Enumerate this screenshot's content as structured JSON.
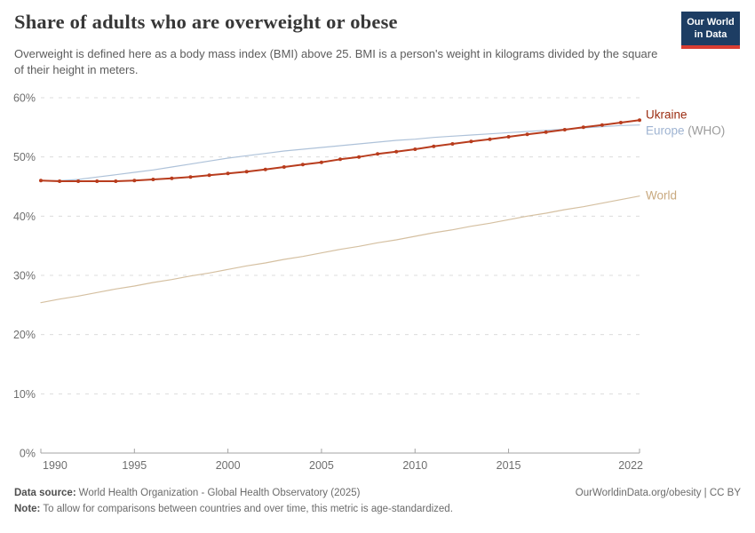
{
  "header": {
    "title": "Share of adults who are overweight or obese",
    "subtitle": "Overweight is defined here as a body mass index (BMI) above 25. BMI is a person's weight in kilograms divided by the square of their height in meters.",
    "logo": {
      "line1": "Our World",
      "line2": "in Data",
      "bg_color": "#1d3d63",
      "accent_color": "#d93d32"
    }
  },
  "chart_data": {
    "type": "line",
    "title": "Share of adults who are overweight or obese",
    "xlabel": "",
    "ylabel": "",
    "x": [
      1990,
      1991,
      1992,
      1993,
      1994,
      1995,
      1996,
      1997,
      1998,
      1999,
      2000,
      2001,
      2002,
      2003,
      2004,
      2005,
      2006,
      2007,
      2008,
      2009,
      2010,
      2011,
      2012,
      2013,
      2014,
      2015,
      2016,
      2017,
      2018,
      2019,
      2020,
      2021,
      2022
    ],
    "series": [
      {
        "name": "Ukraine",
        "color": "#b83c1d",
        "label_color": "#9b2d12",
        "marker": true,
        "width": 2,
        "z": 3,
        "values": [
          46.0,
          45.9,
          45.9,
          45.9,
          45.9,
          46.0,
          46.2,
          46.4,
          46.6,
          46.9,
          47.2,
          47.5,
          47.9,
          48.3,
          48.7,
          49.1,
          49.6,
          50.0,
          50.5,
          50.9,
          51.3,
          51.8,
          52.2,
          52.6,
          53.0,
          53.4,
          53.8,
          54.2,
          54.6,
          55.0,
          55.4,
          55.8,
          56.2
        ]
      },
      {
        "name": "Europe",
        "suffix": " (WHO)",
        "color": "#aec2d9",
        "label_color": "#9fb4d2",
        "suffix_color": "#9b9b9b",
        "marker": false,
        "width": 1.2,
        "z": 1,
        "values": [
          46.0,
          46.0,
          46.2,
          46.6,
          47.0,
          47.4,
          47.8,
          48.3,
          48.8,
          49.3,
          49.8,
          50.2,
          50.6,
          51.0,
          51.3,
          51.6,
          51.9,
          52.2,
          52.5,
          52.8,
          53.0,
          53.3,
          53.5,
          53.7,
          53.9,
          54.1,
          54.3,
          54.5,
          54.7,
          54.9,
          55.1,
          55.3,
          55.4
        ]
      },
      {
        "name": "World",
        "color": "#d5c0a1",
        "label_color": "#c9a97f",
        "marker": false,
        "width": 1.2,
        "z": 2,
        "values": [
          25.4,
          26.0,
          26.5,
          27.1,
          27.7,
          28.2,
          28.8,
          29.3,
          29.9,
          30.4,
          31.0,
          31.6,
          32.1,
          32.7,
          33.2,
          33.8,
          34.4,
          34.9,
          35.5,
          36.0,
          36.6,
          37.2,
          37.7,
          38.3,
          38.8,
          39.4,
          40.0,
          40.5,
          41.1,
          41.6,
          42.2,
          42.8,
          43.4
        ]
      }
    ],
    "ylim": [
      0,
      60
    ],
    "yticks": [
      0,
      10,
      20,
      30,
      40,
      50,
      60
    ],
    "ytick_suffix": "%",
    "xticks": [
      1990,
      1995,
      2000,
      2005,
      2010,
      2015,
      2022
    ],
    "grid": true,
    "legend_position": "right-end-of-line-labels",
    "colors": {
      "grid": "#dcdcdc",
      "axis": "#a3a3a3",
      "tick_text": "#6e6e6e"
    }
  },
  "footer": {
    "datasource_label": "Data source:",
    "datasource": "World Health Organization - Global Health Observatory (2025)",
    "link": "OurWorldinData.org/obesity | CC BY",
    "note_label": "Note:",
    "note": "To allow for comparisons between countries and over time, this metric is age-standardized."
  }
}
